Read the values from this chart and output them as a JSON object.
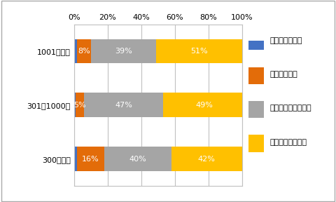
{
  "categories": [
    "1001名以上",
    "301～1000名",
    "300名以下"
  ],
  "series": [
    {
      "label": "とてもそう思う",
      "color": "#4472C4",
      "values": [
        2,
        1,
        2
      ]
    },
    {
      "label": "まあそう思う",
      "color": "#E36C09",
      "values": [
        8,
        5,
        16
      ]
    },
    {
      "label": "あまりそう思わない",
      "color": "#A5A5A5",
      "values": [
        39,
        47,
        40
      ]
    },
    {
      "label": "全くそう思わない",
      "color": "#FFC000",
      "values": [
        51,
        49,
        42
      ]
    }
  ],
  "bar_labels": [
    [
      "",
      "8%",
      "39%",
      "51%"
    ],
    [
      "",
      "5%",
      "47%",
      "49%"
    ],
    [
      "",
      "16%",
      "40%",
      "42%"
    ]
  ],
  "xlim": [
    0,
    100
  ],
  "xticks": [
    0,
    20,
    40,
    60,
    80,
    100
  ],
  "xtick_labels": [
    "0%",
    "20%",
    "40%",
    "60%",
    "80%",
    "100%"
  ],
  "bg_color": "#FFFFFF",
  "grid_color": "#C0C0C0",
  "bar_height": 0.45,
  "legend_fontsize": 8,
  "tick_fontsize": 8,
  "label_fontsize": 8,
  "fig_width": 4.8,
  "fig_height": 2.88,
  "border_color": "#AAAAAA"
}
